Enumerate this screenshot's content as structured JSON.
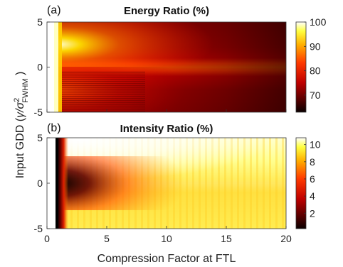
{
  "chart_data": [
    {
      "type": "heatmap",
      "panel_label": "(a)",
      "title": "Energy Ratio (%)",
      "xlim": [
        0,
        20
      ],
      "ylim": [
        -5,
        5
      ],
      "xticks": [
        "0",
        "5",
        "10",
        "15",
        "20"
      ],
      "yticks": [
        "5",
        "0",
        "-5"
      ],
      "ytick_values": [
        5,
        0,
        -5
      ],
      "colorbar": {
        "range": [
          63,
          100
        ],
        "ticks": [
          "100",
          "90",
          "80",
          "70"
        ],
        "tick_values": [
          100,
          90,
          80,
          70
        ],
        "colormap": "hot"
      },
      "grid": false
    },
    {
      "type": "heatmap",
      "panel_label": "(b)",
      "title": "Intensity Ratio (%)",
      "xlim": [
        0,
        20
      ],
      "ylim": [
        -5,
        5
      ],
      "xticks": [
        "0",
        "5",
        "10",
        "15",
        "20"
      ],
      "xtick_values": [
        0,
        5,
        10,
        15,
        20
      ],
      "yticks": [
        "5",
        "0",
        "-5"
      ],
      "ytick_values": [
        5,
        0,
        -5
      ],
      "colorbar": {
        "range": [
          0.2,
          10.8
        ],
        "ticks": [
          "10",
          "8",
          "6",
          "4",
          "2"
        ],
        "tick_values": [
          10,
          8,
          6,
          4,
          2
        ],
        "colormap": "hot"
      },
      "grid": false
    }
  ],
  "shared": {
    "xlabel": "Compression Factor at FTL",
    "ylabel_main": "Input GDD (",
    "ylabel_symbol": "γ/σ",
    "ylabel_sup": "2",
    "ylabel_sub": "FWHM",
    "ylabel_end": " )"
  }
}
